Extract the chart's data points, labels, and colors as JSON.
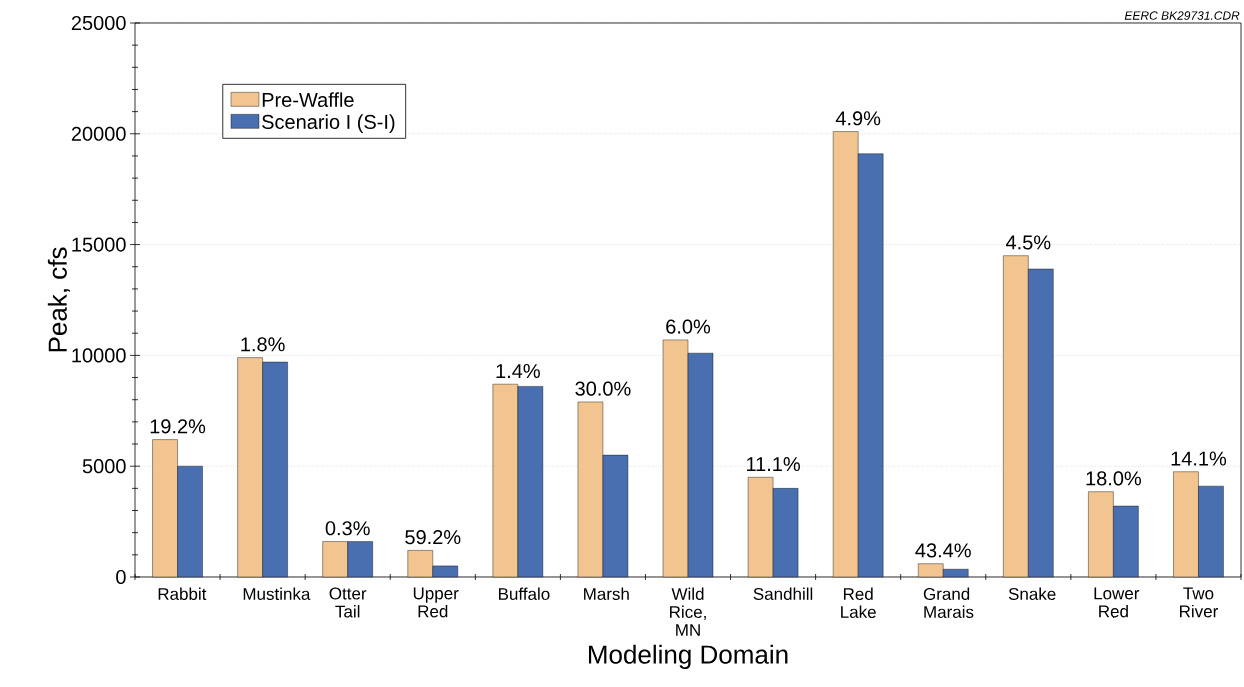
{
  "chart_data": {
    "type": "bar",
    "xlabel": "Modeling Domain",
    "ylabel": "Peak, cfs",
    "categories": [
      "Rabbit",
      "Mustinka",
      "Otter Tail",
      "Upper Red",
      "Buffalo",
      "Marsh",
      "Wild Rice, MN",
      "Sandhill",
      "Red Lake",
      "Grand Marais",
      "Snake",
      "Lower Red",
      "Two River"
    ],
    "series": [
      {
        "name": "Pre-Waffle",
        "color": "#f2c48f",
        "values": [
          6200,
          9900,
          1600,
          1200,
          8700,
          7900,
          10700,
          4500,
          20100,
          600,
          14500,
          3850,
          4750
        ]
      },
      {
        "name": "Scenario I (S-I)",
        "color": "#4a6fb0",
        "values": [
          5000,
          9700,
          1600,
          500,
          8600,
          5500,
          10100,
          4000,
          19100,
          350,
          13900,
          3200,
          4100
        ]
      }
    ],
    "ylim": [
      0,
      25000
    ],
    "yticks": [
      0,
      5000,
      10000,
      15000,
      20000,
      25000
    ],
    "grid": "y",
    "legend": "top left",
    "annotations": [
      "19.2%",
      "1.8%",
      "0.3%",
      "59.2%",
      "1.4%",
      "30.0%",
      "6.0%",
      "11.1%",
      "4.9%",
      "43.4%",
      "4.5%",
      "18.0%",
      "14.1%",
      "EERC BK29731.CDR"
    ]
  }
}
